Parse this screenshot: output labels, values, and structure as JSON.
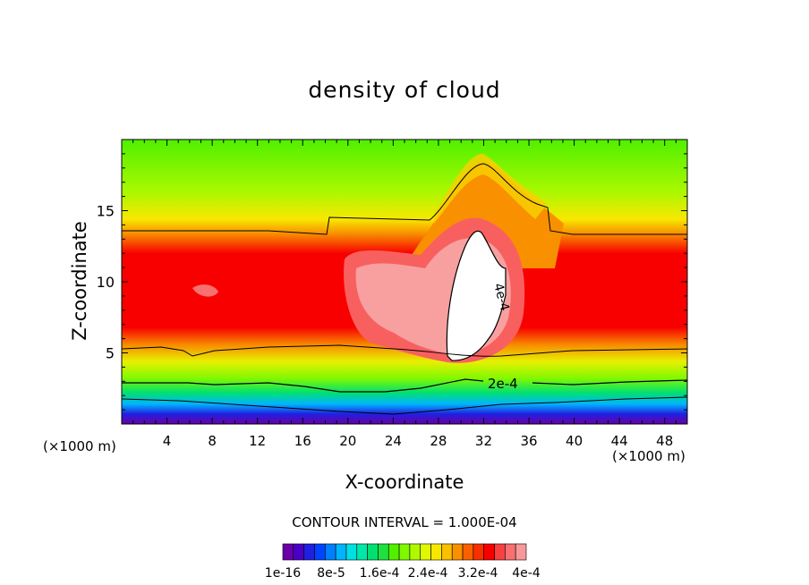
{
  "chart_data": {
    "type": "heatmap",
    "title": "density of cloud",
    "xlabel": "X-coordinate",
    "ylabel": "Z-coordinate",
    "x_unit": "(×1000 m)",
    "xlim": [
      0,
      50
    ],
    "ylim": [
      0,
      20
    ],
    "x_ticks": [
      "4",
      "8",
      "12",
      "16",
      "20",
      "24",
      "28",
      "32",
      "36",
      "40",
      "44",
      "48"
    ],
    "y_ticks": [
      "5",
      "10",
      "15"
    ],
    "contour_labels": [
      "4e-4",
      "2e-4"
    ],
    "contour_interval": "CONTOUR INTERVAL = 1.000E-04",
    "colorbar_labels": [
      "1e-16",
      "8e-5",
      "1.6e-4",
      "2.4e-4",
      "3.2e-4",
      "4e-4"
    ],
    "colorbar_colors": [
      "#6a00a8",
      "#4b00c8",
      "#2020e0",
      "#0044ff",
      "#0080ff",
      "#00b4ff",
      "#00e0e0",
      "#00e8a8",
      "#00e070",
      "#20e040",
      "#50f000",
      "#80f800",
      "#b0f800",
      "#e0f800",
      "#f8e800",
      "#f8c000",
      "#f89000",
      "#f86000",
      "#f83000",
      "#f80000",
      "#f84040",
      "#f87070",
      "#f89898"
    ]
  }
}
